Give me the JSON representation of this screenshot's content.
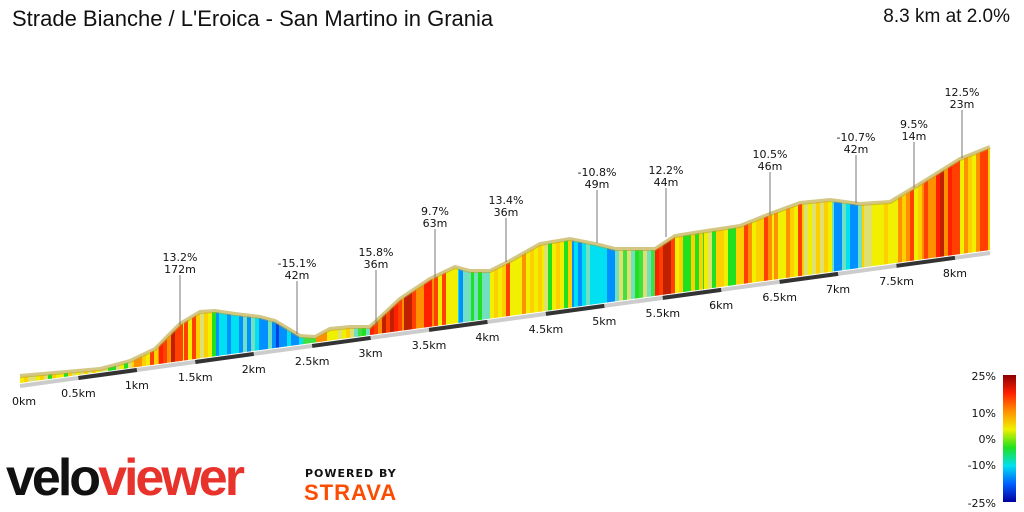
{
  "header": {
    "title": "Strade Bianche / L'Eroica - San Martino in Grania",
    "summary": "8.3 km at 2.0%"
  },
  "chart_data": {
    "type": "area",
    "title": "Strade Bianche / L'Eroica - San Martino in Grania",
    "xlabel": "",
    "ylabel": "",
    "x_ticks": [
      "0km",
      "0.5km",
      "1km",
      "1.5km",
      "2km",
      "2.5km",
      "3km",
      "3.5km",
      "4km",
      "4.5km",
      "5km",
      "5.5km",
      "6km",
      "6.5km",
      "7km",
      "7.5km",
      "8km"
    ],
    "annotations": [
      {
        "grade": "13.2%",
        "length": "172m"
      },
      {
        "grade": "-15.1%",
        "length": "42m"
      },
      {
        "grade": "15.8%",
        "length": "36m"
      },
      {
        "grade": "9.7%",
        "length": "63m"
      },
      {
        "grade": "13.4%",
        "length": "36m"
      },
      {
        "grade": "-10.8%",
        "length": "49m"
      },
      {
        "grade": "12.2%",
        "length": "44m"
      },
      {
        "grade": "10.5%",
        "length": "46m"
      },
      {
        "grade": "-10.7%",
        "length": "42m"
      },
      {
        "grade": "9.5%",
        "length": "14m"
      },
      {
        "grade": "12.5%",
        "length": "23m"
      }
    ],
    "legend": {
      "labels": [
        "25%",
        "10%",
        "0%",
        "-10%",
        "-25%"
      ],
      "colors": [
        "#8b0000",
        "#ff2000",
        "#ff9000",
        "#f0f000",
        "#20e020",
        "#00e0f0",
        "#0060ff",
        "#0000a0"
      ]
    }
  },
  "branding": {
    "logo_a": "velo",
    "logo_b": "viewer",
    "powered": "POWERED BY",
    "strava": "STRAVA"
  }
}
